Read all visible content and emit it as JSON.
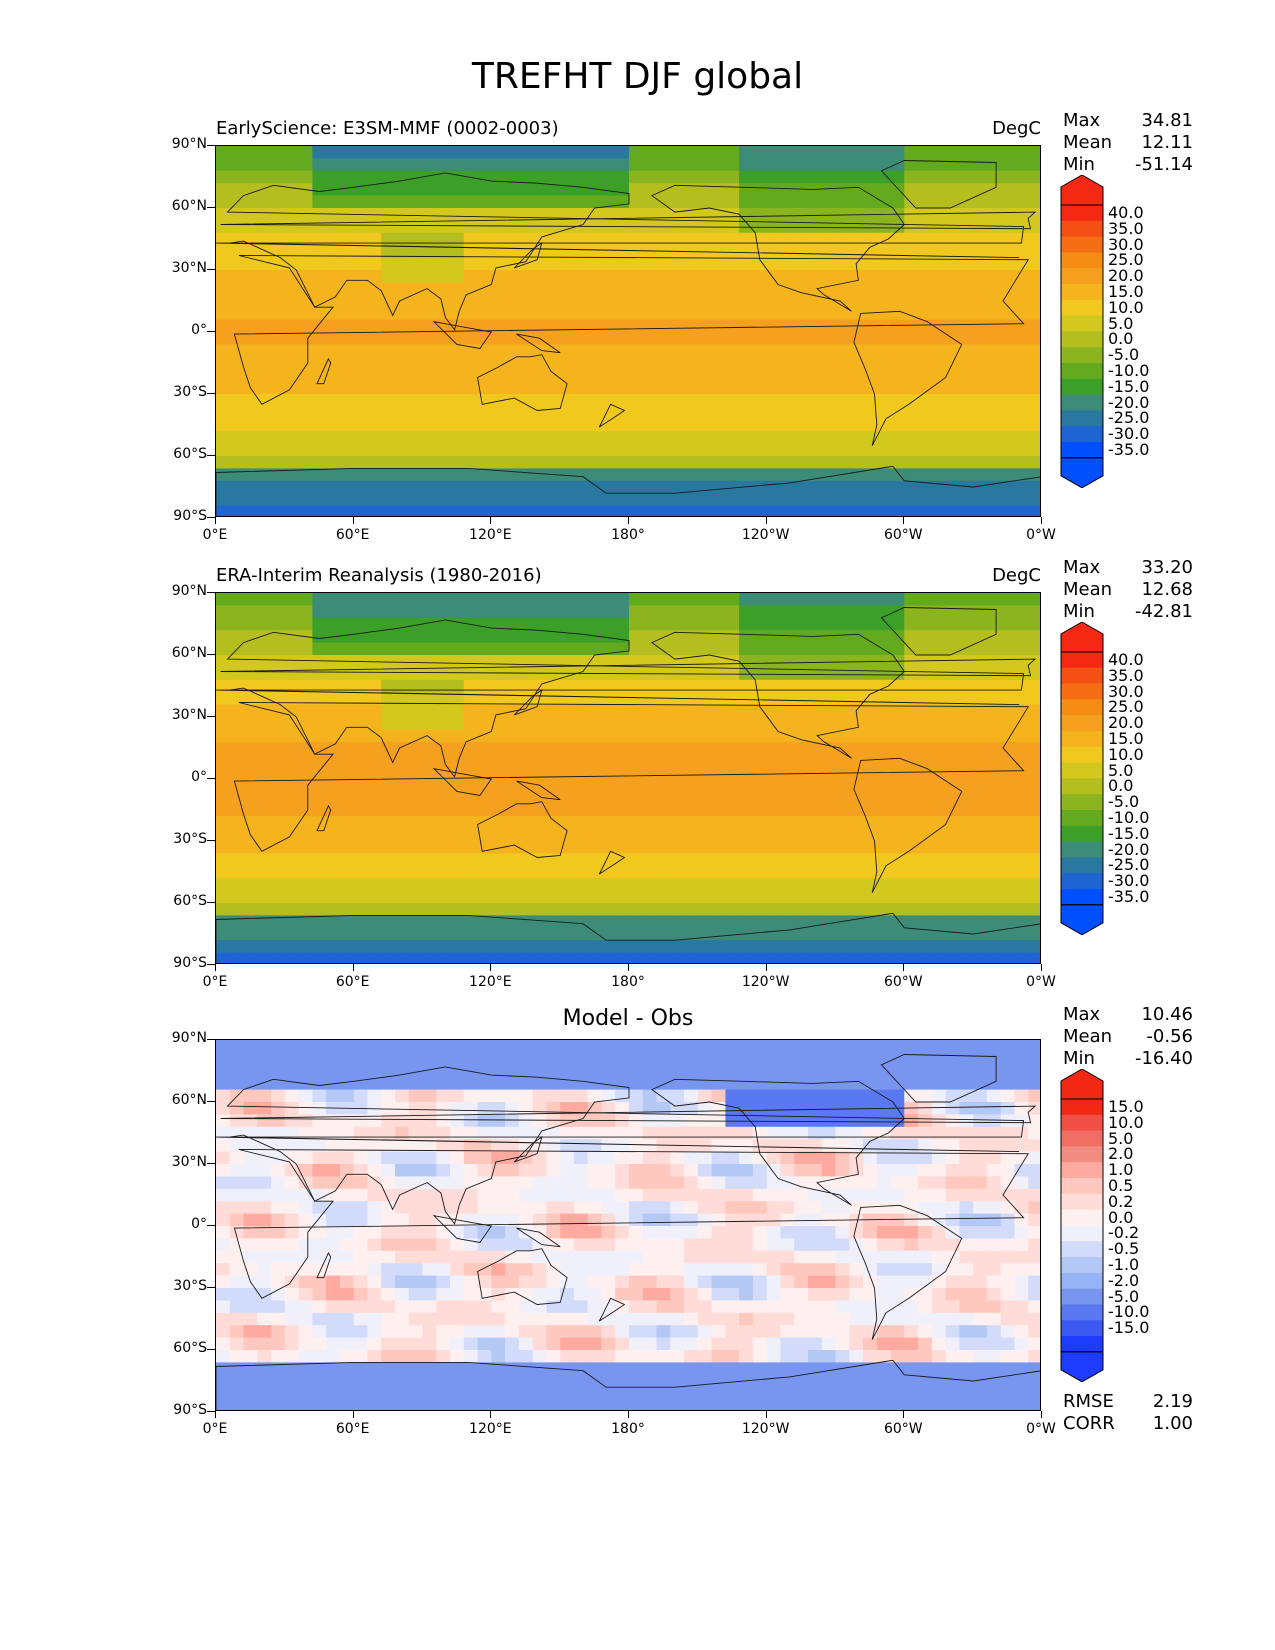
{
  "title": "TREFHT DJF global",
  "panels": [
    {
      "id": "model",
      "subtitle": "EarlyScience: E3SM-MMF (0002-0003)",
      "units": "DegC",
      "stats": [
        {
          "label": "Max",
          "value": "34.81"
        },
        {
          "label": "Mean",
          "value": "12.11"
        },
        {
          "label": "Min",
          "value": "-51.14"
        }
      ],
      "colorbar_ticks": [
        "40.0",
        "35.0",
        "30.0",
        "25.0",
        "20.0",
        "15.0",
        "10.0",
        "5.0",
        "0.0",
        "-5.0",
        "-10.0",
        "-15.0",
        "-20.0",
        "-25.0",
        "-30.0",
        "-35.0"
      ]
    },
    {
      "id": "obs",
      "subtitle": "ERA-Interim Reanalysis (1980-2016)",
      "units": "DegC",
      "stats": [
        {
          "label": "Max",
          "value": "33.20"
        },
        {
          "label": "Mean",
          "value": "12.68"
        },
        {
          "label": "Min",
          "value": "-42.81"
        }
      ],
      "colorbar_ticks": [
        "40.0",
        "35.0",
        "30.0",
        "25.0",
        "20.0",
        "15.0",
        "10.0",
        "5.0",
        "0.0",
        "-5.0",
        "-10.0",
        "-15.0",
        "-20.0",
        "-25.0",
        "-30.0",
        "-35.0"
      ]
    },
    {
      "id": "diff",
      "subtitle": "Model - Obs",
      "units": "",
      "stats": [
        {
          "label": "Max",
          "value": "10.46"
        },
        {
          "label": "Mean",
          "value": "-0.56"
        },
        {
          "label": "Min",
          "value": "-16.40"
        }
      ],
      "colorbar_ticks": [
        "15.0",
        "10.0",
        "5.0",
        "2.0",
        "1.0",
        "0.5",
        "0.2",
        "0.0",
        "-0.2",
        "-0.5",
        "-1.0",
        "-2.0",
        "-5.0",
        "-10.0",
        "-15.0"
      ],
      "extra_stats": [
        {
          "label": "RMSE",
          "value": "2.19"
        },
        {
          "label": "CORR",
          "value": "1.00"
        }
      ]
    }
  ],
  "lat_labels": [
    "90°N",
    "60°N",
    "30°N",
    "0°",
    "30°S",
    "60°S",
    "90°S"
  ],
  "lon_labels": [
    "0°E",
    "60°E",
    "120°E",
    "180°",
    "120°W",
    "60°W",
    "0°W"
  ],
  "temp_colors": [
    "#0050ff",
    "#1e64d2",
    "#2878a0",
    "#3c8c78",
    "#3ca028",
    "#64aa1e",
    "#8cb41e",
    "#b4be1e",
    "#d2c81e",
    "#f0c81e",
    "#f5b41e",
    "#f5a01e",
    "#f58c14",
    "#f56e14",
    "#f55014",
    "#f52814"
  ],
  "diff_colors": [
    "#1e3cff",
    "#3c5af0",
    "#5a78f0",
    "#7896f0",
    "#96b4f5",
    "#b4c8f5",
    "#d2dcfa",
    "#f0f0fa",
    "#fff0f0",
    "#ffdcd7",
    "#ffc8be",
    "#ffaaa0",
    "#f08c82",
    "#f06e64",
    "#f05046",
    "#f02814"
  ]
}
